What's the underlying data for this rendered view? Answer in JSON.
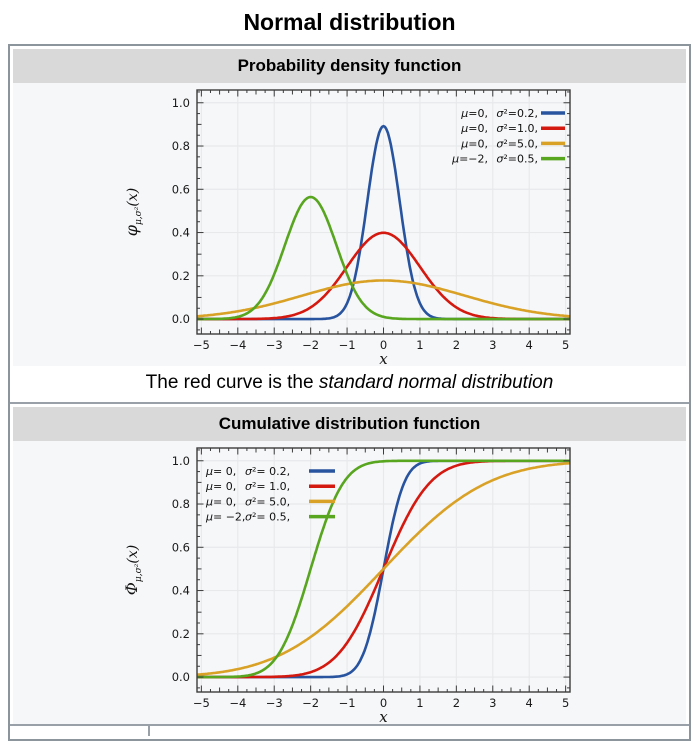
{
  "page": {
    "title": "Normal distribution"
  },
  "sections": {
    "pdf": {
      "header": "Probability density function",
      "caption": {
        "prefix": "The red curve is the ",
        "italic": "standard normal distribution"
      }
    },
    "cdf": {
      "header": "Cumulative distribution function"
    }
  },
  "chart_data": [
    {
      "type": "line",
      "function": "normal_pdf",
      "title": "Probability density function",
      "xlabel": "x",
      "ylabel": {
        "sym": "φ",
        "sub": "μ,σ²",
        "arg": "(x)"
      },
      "xlim": [
        -5.12,
        5.12
      ],
      "ylim": [
        -0.069,
        1.059
      ],
      "x_range": [
        -5,
        5
      ],
      "x_ticks": [
        -5,
        -4,
        -3,
        -2,
        -1,
        0,
        1,
        2,
        3,
        4,
        5
      ],
      "y_ticks": [
        0.0,
        0.2,
        0.4,
        0.6,
        0.8,
        1.0
      ],
      "x_minor_step": 0.25,
      "y_minor_step": 0.05,
      "grid": true,
      "legend_position": "top-right",
      "bg_color": "#f6f7f9",
      "grid_color": "#e7e9eb",
      "frame_color": "#3c3c3c",
      "series": [
        {
          "name": "μ=0, σ²=0.2",
          "mu": 0,
          "variance": 0.2,
          "peak": 0.892,
          "color": "#28539f",
          "legend": {
            "mu": "μ=0,",
            "sigma": "σ²=0.2,"
          }
        },
        {
          "name": "μ=0, σ²=1.0",
          "mu": 0,
          "variance": 1.0,
          "peak": 0.399,
          "color": "#d41a10",
          "legend": {
            "mu": "μ=0,",
            "sigma": "σ²=1.0,"
          }
        },
        {
          "name": "μ=0, σ²=5.0",
          "mu": 0,
          "variance": 5.0,
          "peak": 0.178,
          "color": "#d9a226",
          "legend": {
            "mu": "μ=0,",
            "sigma": "σ²=5.0,"
          }
        },
        {
          "name": "μ=−2, σ²=0.5",
          "mu": -2,
          "variance": 0.5,
          "peak": 0.564,
          "color": "#58a51f",
          "legend": {
            "mu": "μ=−2,",
            "sigma": "σ²=0.5,"
          }
        }
      ]
    },
    {
      "type": "line",
      "function": "normal_cdf",
      "title": "Cumulative distribution function",
      "xlabel": "x",
      "ylabel": {
        "sym": "Φ",
        "sub": "μ,σ²",
        "arg": "(x)"
      },
      "xlim": [
        -5.12,
        5.12
      ],
      "ylim": [
        -0.069,
        1.059
      ],
      "x_range": [
        -5,
        5
      ],
      "x_ticks": [
        -5,
        -4,
        -3,
        -2,
        -1,
        0,
        1,
        2,
        3,
        4,
        5
      ],
      "y_ticks": [
        0.0,
        0.2,
        0.4,
        0.6,
        0.8,
        1.0
      ],
      "x_minor_step": 0.25,
      "y_minor_step": 0.05,
      "grid": true,
      "legend_position": "top-left",
      "bg_color": "#f6f7f9",
      "grid_color": "#e7e9eb",
      "frame_color": "#3c3c3c",
      "series": [
        {
          "name": "μ= 0, σ²= 0.2",
          "mu": 0,
          "variance": 0.2,
          "color": "#28539f",
          "legend": {
            "mu": "μ= 0,",
            "sigma": "σ²= 0.2,"
          }
        },
        {
          "name": "μ= 0, σ²= 1.0",
          "mu": 0,
          "variance": 1.0,
          "color": "#d41a10",
          "legend": {
            "mu": "μ= 0,",
            "sigma": "σ²= 1.0,"
          }
        },
        {
          "name": "μ= 0, σ²= 5.0",
          "mu": 0,
          "variance": 5.0,
          "color": "#d9a226",
          "legend": {
            "mu": "μ= 0,",
            "sigma": "σ²= 5.0,"
          }
        },
        {
          "name": "μ= −2, σ²= 0.5",
          "mu": -2,
          "variance": 0.5,
          "color": "#58a51f",
          "legend": {
            "mu": "μ= −2,",
            "sigma": "σ²= 0.5,"
          }
        }
      ]
    }
  ]
}
